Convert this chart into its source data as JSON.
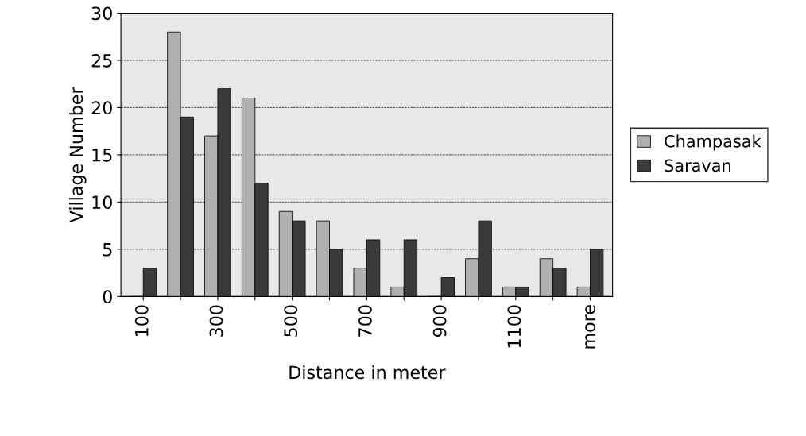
{
  "chart_data": {
    "type": "bar",
    "xlabel": "Distance in meter",
    "ylabel": "Village Number",
    "categories": [
      "100",
      null,
      "300",
      null,
      "500",
      null,
      "700",
      null,
      "900",
      null,
      "1100",
      null,
      "more"
    ],
    "series": [
      {
        "name": "Champasak",
        "color": "#b0b0b0",
        "values": [
          0,
          28,
          17,
          21,
          9,
          8,
          3,
          1,
          0,
          4,
          1,
          4,
          1
        ]
      },
      {
        "name": "Saravan",
        "color": "#3a3a3a",
        "values": [
          3,
          19,
          22,
          12,
          8,
          5,
          6,
          6,
          2,
          8,
          1,
          3,
          5
        ]
      }
    ],
    "ylim": [
      0,
      30
    ],
    "yticks": [
      0,
      5,
      10,
      15,
      20,
      25,
      30
    ],
    "grid": "y",
    "legend": "right"
  }
}
